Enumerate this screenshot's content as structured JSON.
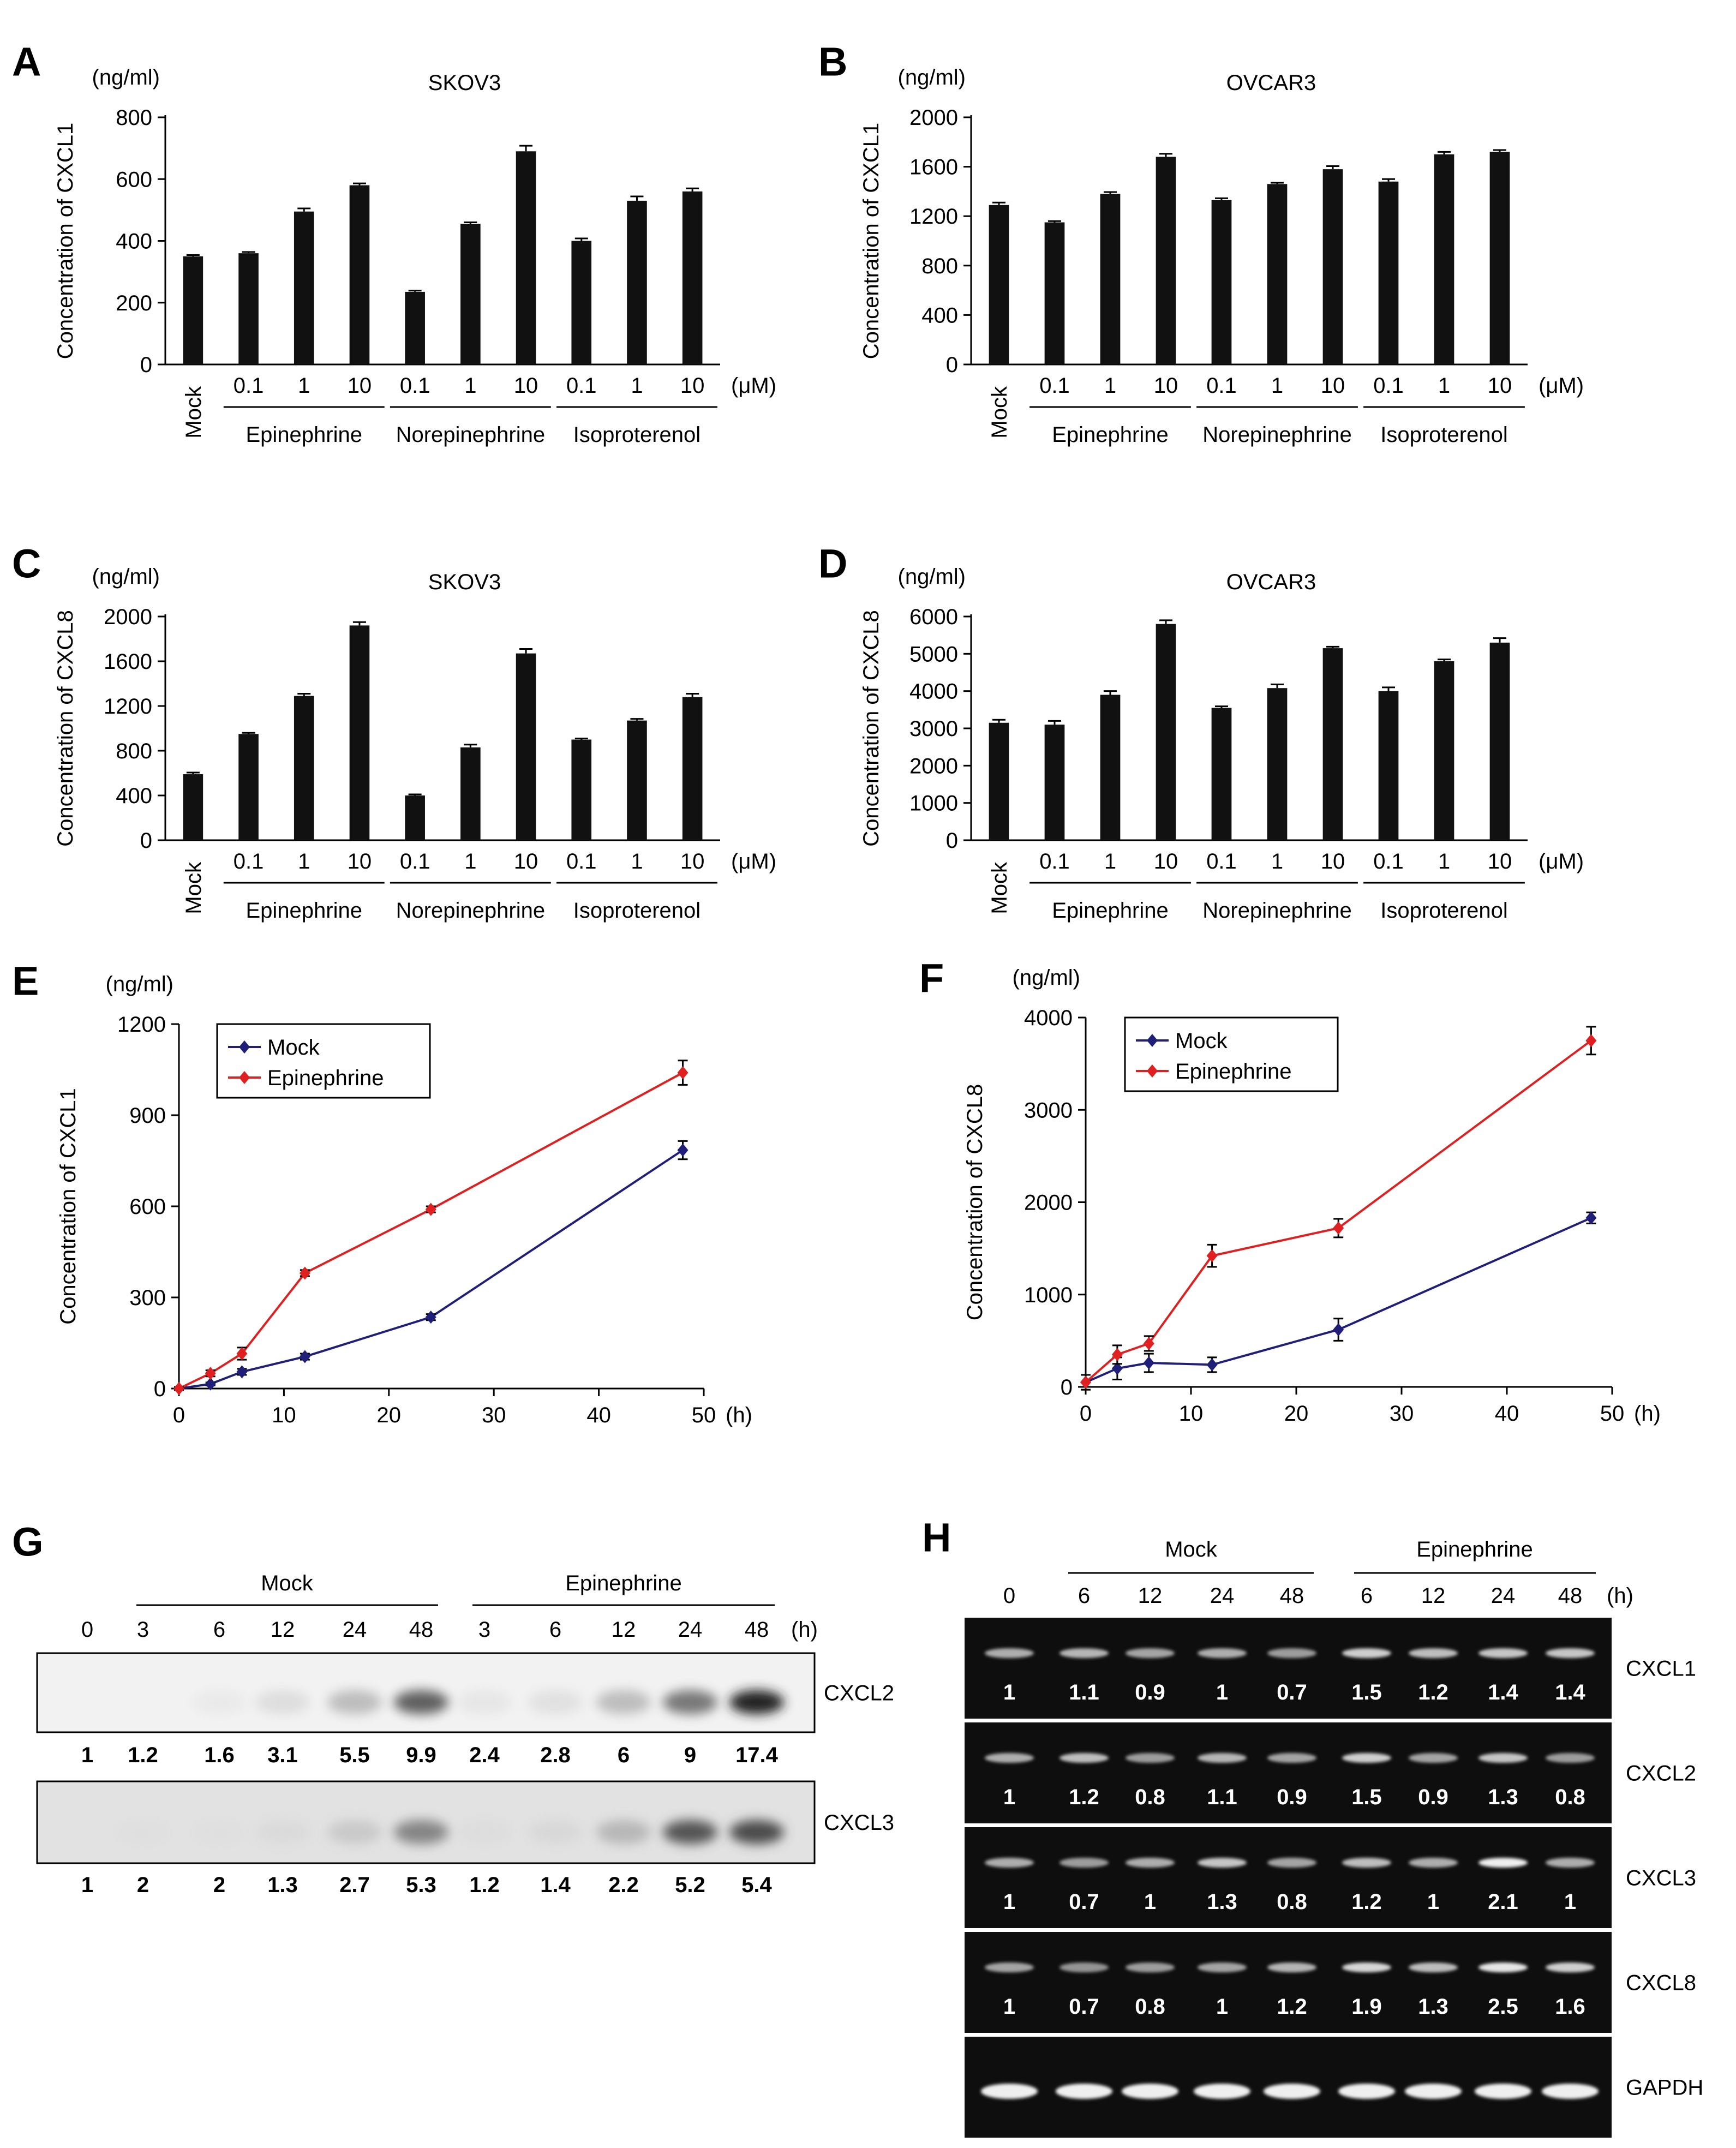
{
  "colors": {
    "bar": "#111111",
    "mock_line": "#1f1f7a",
    "epi_line": "#e02020"
  },
  "chart_data": [
    {
      "id": "A",
      "type": "bar",
      "label": "A",
      "title": "SKOV3",
      "unit": "(ng/ml)",
      "ylabel": "Concentration of CXCL1",
      "ylim": [
        0,
        800
      ],
      "yticks": [
        0,
        200,
        400,
        600,
        800
      ],
      "xunit": "(μM)",
      "categories": [
        "Mock",
        "0.1",
        "1",
        "10",
        "0.1",
        "1",
        "10",
        "0.1",
        "1",
        "10"
      ],
      "groups": [
        "Epinephrine",
        "Norepinephrine",
        "Isoproterenol"
      ],
      "values": [
        350,
        360,
        495,
        580,
        235,
        455,
        690,
        400,
        530,
        560
      ],
      "errors": [
        4,
        4,
        10,
        6,
        4,
        5,
        18,
        8,
        14,
        10
      ]
    },
    {
      "id": "B",
      "type": "bar",
      "label": "B",
      "title": "OVCAR3",
      "unit": "(ng/ml)",
      "ylabel": "Concentration of CXCL1",
      "ylim": [
        0,
        2000
      ],
      "yticks": [
        0,
        400,
        800,
        1200,
        1600,
        2000
      ],
      "xunit": "(μM)",
      "categories": [
        "Mock",
        "0.1",
        "1",
        "10",
        "0.1",
        "1",
        "10",
        "0.1",
        "1",
        "10"
      ],
      "groups": [
        "Epinephrine",
        "Norepinephrine",
        "Isoproterenol"
      ],
      "values": [
        1290,
        1150,
        1380,
        1680,
        1330,
        1460,
        1580,
        1480,
        1700,
        1720
      ],
      "errors": [
        20,
        10,
        15,
        25,
        15,
        10,
        25,
        20,
        20,
        15
      ]
    },
    {
      "id": "C",
      "type": "bar",
      "label": "C",
      "title": "SKOV3",
      "unit": "(ng/ml)",
      "ylabel": "Concentration of CXCL8",
      "ylim": [
        0,
        2000
      ],
      "yticks": [
        0,
        400,
        800,
        1200,
        1600,
        2000
      ],
      "xunit": "(μM)",
      "categories": [
        "Mock",
        "0.1",
        "1",
        "10",
        "0.1",
        "1",
        "10",
        "0.1",
        "1",
        "10"
      ],
      "groups": [
        "Epinephrine",
        "Norepinephrine",
        "Isoproterenol"
      ],
      "values": [
        590,
        950,
        1290,
        1920,
        400,
        830,
        1670,
        900,
        1070,
        1280
      ],
      "errors": [
        15,
        10,
        20,
        30,
        10,
        25,
        40,
        10,
        15,
        30
      ]
    },
    {
      "id": "D",
      "type": "bar",
      "label": "D",
      "title": "OVCAR3",
      "unit": "(ng/ml)",
      "ylabel": "Concentration of CXCL8",
      "ylim": [
        0,
        6000
      ],
      "yticks": [
        0,
        1000,
        2000,
        3000,
        4000,
        5000,
        6000
      ],
      "xunit": "(μM)",
      "categories": [
        "Mock",
        "0.1",
        "1",
        "10",
        "0.1",
        "1",
        "10",
        "0.1",
        "1",
        "10"
      ],
      "groups": [
        "Epinephrine",
        "Norepinephrine",
        "Isoproterenol"
      ],
      "values": [
        3150,
        3100,
        3900,
        5800,
        3550,
        4080,
        5150,
        4000,
        4800,
        5300
      ],
      "errors": [
        80,
        100,
        100,
        100,
        40,
        100,
        40,
        100,
        50,
        120
      ]
    },
    {
      "id": "E",
      "type": "line",
      "label": "E",
      "unit": "(ng/ml)",
      "ylabel": "Concentration of CXCL1",
      "xunit": "(h)",
      "ylim": [
        0,
        1200
      ],
      "yticks": [
        0,
        300,
        600,
        900,
        1200
      ],
      "xlim": [
        0,
        50
      ],
      "xticks": [
        0,
        10,
        20,
        30,
        40,
        50
      ],
      "legend_position": "top-left",
      "x": [
        0,
        3,
        6,
        12,
        24,
        48
      ],
      "series": [
        {
          "name": "Mock",
          "values": [
            0,
            15,
            55,
            105,
            235,
            785
          ],
          "errors": [
            5,
            5,
            10,
            10,
            10,
            30
          ]
        },
        {
          "name": "Epinephrine",
          "values": [
            0,
            50,
            115,
            380,
            590,
            1040
          ],
          "errors": [
            5,
            10,
            20,
            10,
            10,
            40
          ]
        }
      ]
    },
    {
      "id": "F",
      "type": "line",
      "label": "F",
      "unit": "(ng/ml)",
      "ylabel": "Concentration of CXCL8",
      "xunit": "(h)",
      "ylim": [
        0,
        4000
      ],
      "yticks": [
        0,
        1000,
        2000,
        3000,
        4000
      ],
      "xlim": [
        0,
        50
      ],
      "xticks": [
        0,
        10,
        20,
        30,
        40,
        50
      ],
      "legend_position": "top-left",
      "x": [
        0,
        3,
        6,
        12,
        24,
        48
      ],
      "series": [
        {
          "name": "Mock",
          "values": [
            50,
            200,
            260,
            240,
            620,
            1830
          ],
          "errors": [
            80,
            120,
            100,
            80,
            120,
            60
          ]
        },
        {
          "name": "Epinephrine",
          "values": [
            50,
            350,
            470,
            1420,
            1720,
            3750
          ],
          "errors": [
            80,
            100,
            80,
            120,
            100,
            150
          ]
        }
      ]
    }
  ],
  "blot_g": {
    "label": "G",
    "unit": "(h)",
    "group_mock": "Mock",
    "group_epi": "Epinephrine",
    "times": [
      "0",
      "3",
      "6",
      "12",
      "24",
      "48",
      "3",
      "6",
      "12",
      "24",
      "48"
    ],
    "rows": [
      {
        "name": "CXCL2",
        "values": [
          "1",
          "1.2",
          "1.6",
          "3.1",
          "5.5",
          "9.9",
          "2.4",
          "2.8",
          "6",
          "9",
          "17.4"
        ],
        "intensity": [
          0,
          0,
          0.02,
          0.12,
          0.3,
          0.62,
          0.05,
          0.1,
          0.3,
          0.55,
          0.9
        ]
      },
      {
        "name": "CXCL3",
        "values": [
          "1",
          "2",
          "2",
          "1.3",
          "2.7",
          "5.3",
          "1.2",
          "1.4",
          "2.2",
          "5.2",
          "5.4"
        ],
        "intensity": [
          0,
          0.03,
          0.03,
          0.08,
          0.2,
          0.5,
          0.05,
          0.1,
          0.3,
          0.65,
          0.7
        ]
      }
    ]
  },
  "gel_h": {
    "label": "H",
    "unit": "(h)",
    "group_mock": "Mock",
    "group_epi": "Epinephrine",
    "times": [
      "0",
      "6",
      "12",
      "24",
      "48",
      "6",
      "12",
      "24",
      "48"
    ],
    "rows": [
      {
        "name": "CXCL1",
        "values": [
          "1",
          "1.1",
          "0.9",
          "1",
          "0.7",
          "1.5",
          "1.2",
          "1.4",
          "1.4"
        ],
        "intensity": [
          0.5,
          0.55,
          0.45,
          0.5,
          0.4,
          0.7,
          0.6,
          0.65,
          0.65
        ]
      },
      {
        "name": "CXCL2",
        "values": [
          "1",
          "1.2",
          "0.8",
          "1.1",
          "0.9",
          "1.5",
          "0.9",
          "1.3",
          "0.8"
        ],
        "intensity": [
          0.5,
          0.6,
          0.4,
          0.55,
          0.45,
          0.7,
          0.45,
          0.65,
          0.4
        ]
      },
      {
        "name": "CXCL3",
        "values": [
          "1",
          "0.7",
          "1",
          "1.3",
          "0.8",
          "1.2",
          "1",
          "2.1",
          "1"
        ],
        "intensity": [
          0.5,
          0.4,
          0.5,
          0.65,
          0.45,
          0.6,
          0.5,
          0.9,
          0.5
        ]
      },
      {
        "name": "CXCL8",
        "values": [
          "1",
          "0.7",
          "0.8",
          "1",
          "1.2",
          "1.9",
          "1.3",
          "2.5",
          "1.6"
        ],
        "intensity": [
          0.45,
          0.35,
          0.4,
          0.45,
          0.55,
          0.75,
          0.6,
          0.85,
          0.7
        ]
      },
      {
        "name": "GAPDH",
        "values": [],
        "intensity": [
          0.9,
          0.9,
          0.9,
          0.9,
          0.9,
          0.9,
          0.9,
          0.9,
          0.9
        ]
      }
    ]
  }
}
